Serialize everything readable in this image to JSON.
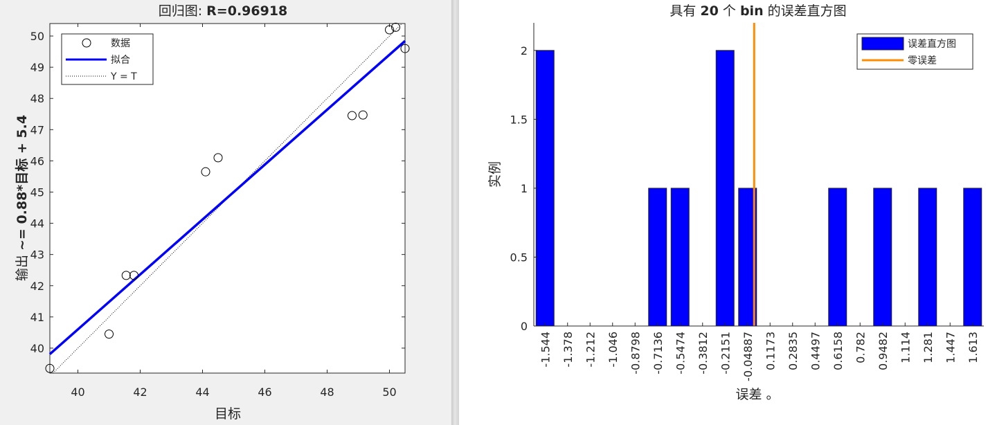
{
  "chart_data": [
    {
      "type": "scatter",
      "title_prefix": "回归图: ",
      "title_value": "R=0.96918",
      "xlabel": "目标",
      "ylabel_prefix": "输出 ",
      "ylabel_value": "~= 0.88*目标 + 5.4",
      "xlim": [
        39.1,
        50.5
      ],
      "ylim": [
        39.2,
        50.4
      ],
      "xticks": [
        40,
        42,
        44,
        46,
        48,
        50
      ],
      "yticks": [
        40,
        41,
        42,
        43,
        44,
        45,
        46,
        47,
        48,
        49,
        50
      ],
      "points": [
        {
          "x": 39.1,
          "y": 39.35
        },
        {
          "x": 41.0,
          "y": 40.45
        },
        {
          "x": 41.55,
          "y": 42.33
        },
        {
          "x": 41.8,
          "y": 42.33
        },
        {
          "x": 44.1,
          "y": 45.65
        },
        {
          "x": 44.5,
          "y": 46.1
        },
        {
          "x": 48.8,
          "y": 47.45
        },
        {
          "x": 49.15,
          "y": 47.47
        },
        {
          "x": 50.0,
          "y": 50.2
        },
        {
          "x": 50.2,
          "y": 50.28
        },
        {
          "x": 50.5,
          "y": 49.6
        }
      ],
      "fit": {
        "slope": 0.88,
        "intercept": 5.4
      },
      "legend": [
        "数据",
        "拟合",
        "Y = T"
      ],
      "legend_position": "top-left",
      "colors": {
        "fit": "#0000ff",
        "points": "#000000",
        "identity": "#000000"
      }
    },
    {
      "type": "bar",
      "title_prefix": "具有 ",
      "title_bold": "20",
      "title_mid": " 个 ",
      "title_bold2": "bin",
      "title_suffix": " 的误差直方图",
      "xlabel": "误差 。",
      "ylabel": "实例",
      "ylim": [
        0,
        2.2
      ],
      "yticks": [
        0,
        0.5,
        1,
        1.5,
        2
      ],
      "categories": [
        "-1.544",
        "-1.378",
        "-1.212",
        "-1.046",
        "-0.8798",
        "-0.7136",
        "-0.5474",
        "-0.3812",
        "-0.2151",
        "-0.04887",
        "0.1173",
        "0.2835",
        "0.4497",
        "0.6158",
        "0.782",
        "0.9482",
        "1.114",
        "1.281",
        "1.447",
        "1.613"
      ],
      "values": [
        2,
        0,
        0,
        0,
        0,
        1,
        1,
        0,
        2,
        1,
        0,
        0,
        0,
        1,
        0,
        1,
        0,
        1,
        0,
        1
      ],
      "zero_error": 0,
      "legend": [
        "误差直方图",
        "零误差"
      ],
      "legend_position": "top-right",
      "colors": {
        "bars": "#0000ff",
        "zero": "#ff8c00"
      }
    }
  ]
}
